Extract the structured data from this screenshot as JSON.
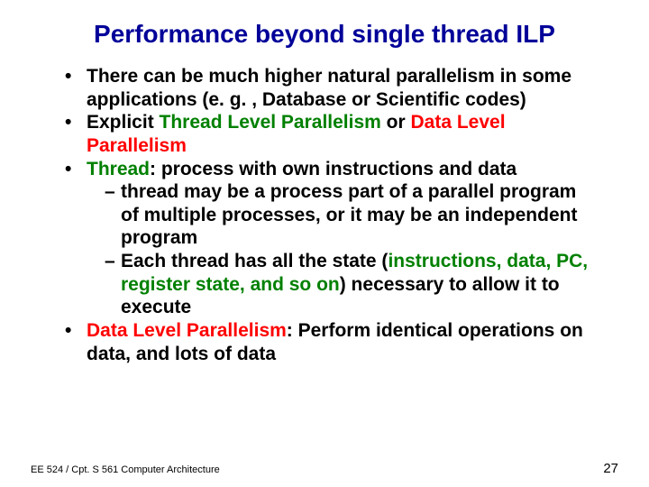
{
  "colors": {
    "title": "#000099",
    "body": "#000000",
    "highlight1": "#008000",
    "highlight2": "#ff0000",
    "footer": "#000000",
    "page_number": "#000000",
    "background": "#ffffff"
  },
  "typography": {
    "title_fontsize": 28,
    "body_fontsize": 21,
    "footer_fontsize": 11,
    "page_number_fontsize": 15,
    "font_family": "Arial"
  },
  "title": "Performance beyond single thread ILP",
  "bullets": [
    {
      "runs": [
        {
          "text": "There can be much higher natural parallelism in some applications (e. g. , Database or Scientific codes)"
        }
      ]
    },
    {
      "runs": [
        {
          "text": "Explicit "
        },
        {
          "text": "Thread Level Parallelism ",
          "color": "highlight1"
        },
        {
          "text": "or "
        },
        {
          "text": "Data Level Parallelism",
          "color": "highlight2"
        }
      ]
    },
    {
      "runs": [
        {
          "text": "Thread",
          "color": "highlight1"
        },
        {
          "text": ": process with own instructions and data"
        }
      ],
      "sub": [
        {
          "runs": [
            {
              "text": "thread may be a process part of a parallel program of multiple processes, or it may be an independent program"
            }
          ]
        },
        {
          "runs": [
            {
              "text": "Each thread has all the state ("
            },
            {
              "text": "instructions, data, PC, register state, and so on",
              "color": "highlight1"
            },
            {
              "text": ") necessary to allow it to execute"
            }
          ]
        }
      ]
    },
    {
      "runs": [
        {
          "text": "Data Level Parallelism",
          "color": "highlight2"
        },
        {
          "text": ": Perform identical operations on data, and lots of data"
        }
      ]
    }
  ],
  "footer": {
    "left": "EE 524 / Cpt. S 561 Computer Architecture",
    "page_number": "27"
  }
}
